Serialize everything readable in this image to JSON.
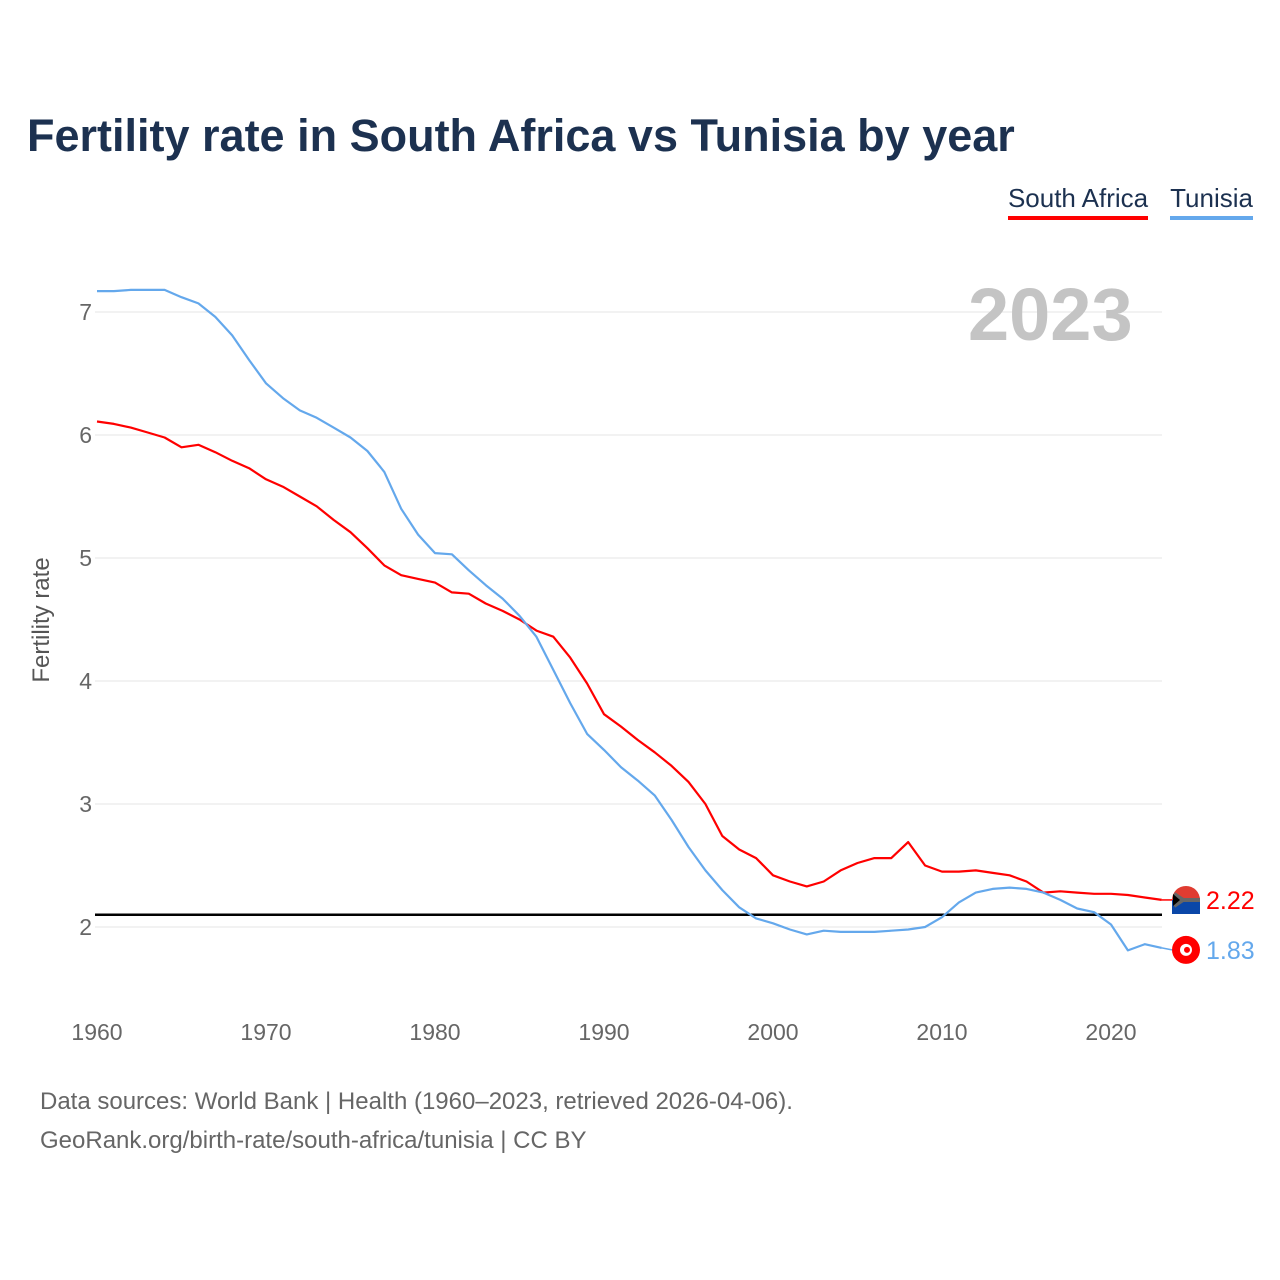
{
  "chart_data": {
    "type": "line",
    "title": "Fertility rate in South Africa vs Tunisia by year",
    "ylabel": "Fertility rate",
    "xlabel": "",
    "xlim": [
      1960,
      2023
    ],
    "ylim": [
      1.5,
      7.3
    ],
    "xticks": [
      1960,
      1970,
      1980,
      1990,
      2000,
      2010,
      2020
    ],
    "yticks": [
      2,
      3,
      4,
      5,
      6,
      7
    ],
    "grid": true,
    "legend_position": "top-right",
    "current_year": "2023",
    "reference_line": 2.1,
    "x": [
      1960,
      1961,
      1962,
      1963,
      1964,
      1965,
      1966,
      1967,
      1968,
      1969,
      1970,
      1971,
      1972,
      1973,
      1974,
      1975,
      1976,
      1977,
      1978,
      1979,
      1980,
      1981,
      1982,
      1983,
      1984,
      1985,
      1986,
      1987,
      1988,
      1989,
      1990,
      1991,
      1992,
      1993,
      1994,
      1995,
      1996,
      1997,
      1998,
      1999,
      2000,
      2001,
      2002,
      2003,
      2004,
      2005,
      2006,
      2007,
      2008,
      2009,
      2010,
      2011,
      2012,
      2013,
      2014,
      2015,
      2016,
      2017,
      2018,
      2019,
      2020,
      2021,
      2022,
      2023
    ],
    "series": [
      {
        "name": "South Africa",
        "color": "#ff0000",
        "end_label": "2.22",
        "values": [
          6.11,
          6.09,
          6.06,
          6.02,
          5.98,
          5.9,
          5.92,
          5.86,
          5.79,
          5.73,
          5.64,
          5.58,
          5.5,
          5.42,
          5.31,
          5.21,
          5.08,
          4.94,
          4.86,
          4.83,
          4.8,
          4.72,
          4.71,
          4.63,
          4.57,
          4.5,
          4.41,
          4.36,
          4.19,
          3.98,
          3.73,
          3.63,
          3.52,
          3.42,
          3.31,
          3.18,
          3.0,
          2.74,
          2.63,
          2.56,
          2.42,
          2.37,
          2.33,
          2.37,
          2.46,
          2.52,
          2.56,
          2.56,
          2.69,
          2.5,
          2.45,
          2.45,
          2.46,
          2.44,
          2.42,
          2.37,
          2.28,
          2.29,
          2.28,
          2.27,
          2.27,
          2.26,
          2.24,
          2.22
        ]
      },
      {
        "name": "Tunisia",
        "color": "#64a8ec",
        "end_label": "1.83",
        "values": [
          7.17,
          7.17,
          7.18,
          7.18,
          7.18,
          7.12,
          7.07,
          6.96,
          6.81,
          6.61,
          6.42,
          6.3,
          6.2,
          6.14,
          6.06,
          5.98,
          5.87,
          5.7,
          5.4,
          5.19,
          5.04,
          5.03,
          4.9,
          4.78,
          4.67,
          4.53,
          4.36,
          4.09,
          3.82,
          3.57,
          3.44,
          3.3,
          3.19,
          3.07,
          2.87,
          2.65,
          2.46,
          2.3,
          2.16,
          2.07,
          2.03,
          1.98,
          1.94,
          1.97,
          1.96,
          1.96,
          1.96,
          1.97,
          1.98,
          2.0,
          2.08,
          2.2,
          2.28,
          2.31,
          2.32,
          2.31,
          2.28,
          2.22,
          2.15,
          2.12,
          2.02,
          1.81,
          1.86,
          1.83
        ]
      }
    ]
  },
  "footer": {
    "line1": "Data sources: World Bank | Health (1960–2023, retrieved 2026-04-06).",
    "line2": "GeoRank.org/birth-rate/south-africa/tunisia | CC BY"
  }
}
